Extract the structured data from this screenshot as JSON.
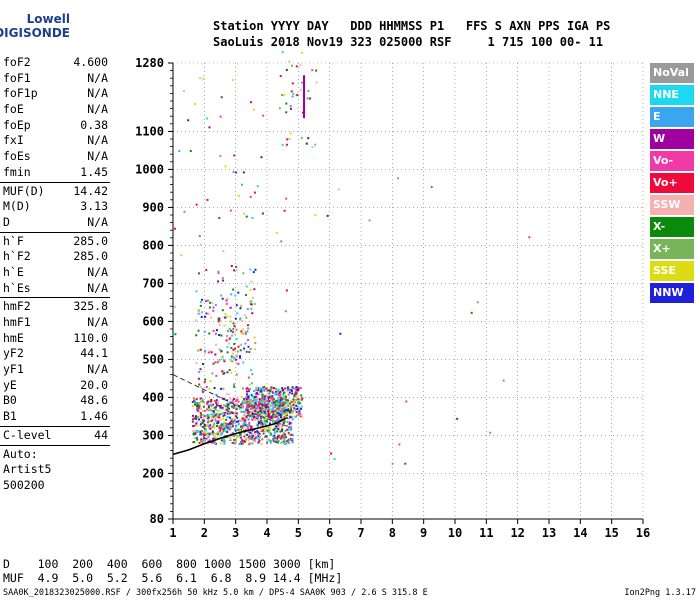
{
  "logo": {
    "top": "Lowell",
    "bottom": "DIGISONDE"
  },
  "header": {
    "line1": "Station YYYY DAY   DDD HHMMSS P1   FFS S AXN PPS IGA PS",
    "line2": "SaoLuis 2018 Nov19 323 025000 RSF     1 715 100 00- 11"
  },
  "params": [
    {
      "group": [
        {
          "label": "foF2",
          "value": "4.600"
        },
        {
          "label": "foF1",
          "value": "N/A"
        },
        {
          "label": "foF1p",
          "value": "N/A"
        },
        {
          "label": "foE",
          "value": "N/A"
        },
        {
          "label": "foEp",
          "value": "0.38"
        },
        {
          "label": "fxI",
          "value": "N/A"
        },
        {
          "label": "foEs",
          "value": "N/A"
        },
        {
          "label": "fmin",
          "value": "1.45"
        }
      ]
    },
    {
      "group": [
        {
          "label": "MUF(D)",
          "value": "14.42"
        },
        {
          "label": "M(D)",
          "value": "3.13"
        },
        {
          "label": "D",
          "value": "N/A"
        }
      ]
    },
    {
      "group": [
        {
          "label": "h`F",
          "value": "285.0"
        },
        {
          "label": "h`F2",
          "value": "285.0"
        },
        {
          "label": "h`E",
          "value": "N/A"
        },
        {
          "label": "h`Es",
          "value": "N/A"
        }
      ]
    },
    {
      "group": [
        {
          "label": "hmF2",
          "value": "325.8"
        },
        {
          "label": "hmF1",
          "value": "N/A"
        },
        {
          "label": "hmE",
          "value": "110.0"
        },
        {
          "label": "yF2",
          "value": "44.1"
        },
        {
          "label": "yF1",
          "value": "N/A"
        },
        {
          "label": "yE",
          "value": "20.0"
        },
        {
          "label": "B0",
          "value": "48.6"
        },
        {
          "label": "B1",
          "value": "1.46"
        }
      ]
    },
    {
      "group": [
        {
          "label": "C-level",
          "value": "44"
        }
      ]
    }
  ],
  "auto": [
    "Auto:",
    "Artist5",
    "500200"
  ],
  "legend": [
    {
      "label": "NoVal",
      "color": "#9a9a9a"
    },
    {
      "label": "NNE",
      "color": "#1ed7f0"
    },
    {
      "label": "E",
      "color": "#3aa6f0"
    },
    {
      "label": "W",
      "color": "#a000a0"
    },
    {
      "label": "Vo-",
      "color": "#f03aa6"
    },
    {
      "label": "Vo+",
      "color": "#f00a3c"
    },
    {
      "label": "SSW",
      "color": "#f5b0b0"
    },
    {
      "label": "X-",
      "color": "#0a8a0a"
    },
    {
      "label": "X+",
      "color": "#78b45a"
    },
    {
      "label": "SSE",
      "color": "#dcdc14"
    },
    {
      "label": "NNW",
      "color": "#2020d8"
    }
  ],
  "chart_data": {
    "type": "scatter",
    "x_ticks": [
      1,
      2,
      3,
      4,
      5,
      6,
      7,
      8,
      9,
      10,
      11,
      12,
      13,
      14,
      15,
      16
    ],
    "y_ticks": [
      80,
      200,
      300,
      400,
      500,
      600,
      700,
      800,
      900,
      1000,
      1100,
      1280
    ],
    "xlim": [
      1,
      16
    ],
    "ylim": [
      80,
      1280
    ],
    "grid": true,
    "trace_fit": {
      "freq": [
        1.0,
        1.5,
        2.0,
        2.5,
        3.0,
        3.5,
        4.0,
        4.3,
        4.6
      ],
      "height": [
        250,
        262,
        278,
        292,
        305,
        315,
        325,
        332,
        345
      ]
    }
  },
  "footer": {
    "row_d": "D    100  200  400  600  800 1000 1500 3000 [km]",
    "row_muf": "MUF  4.9  5.0  5.2  5.6  6.1  6.8  8.9 14.4 [MHz]",
    "fileinfo": "SAA0K_2018323025000.RSF / 300fx256h 50 kHz 5.0 km / DPS-4 SAA0K 903 / 2.6 S 315.8 E",
    "version": "Ion2Png 1.3.17"
  }
}
